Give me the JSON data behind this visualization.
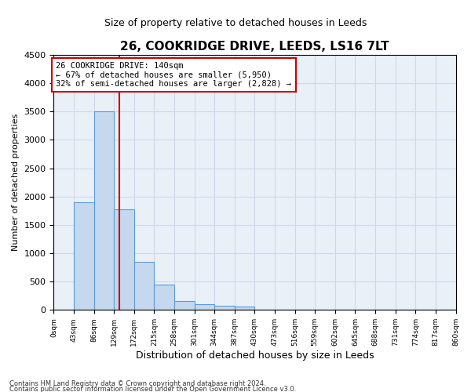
{
  "title": "26, COOKRIDGE DRIVE, LEEDS, LS16 7LT",
  "subtitle": "Size of property relative to detached houses in Leeds",
  "xlabel": "Distribution of detached houses by size in Leeds",
  "ylabel": "Number of detached properties",
  "annotation_line1": "26 COOKRIDGE DRIVE: 140sqm",
  "annotation_line2": "← 67% of detached houses are smaller (5,950)",
  "annotation_line3": "32% of semi-detached houses are larger (2,828) →",
  "footer_line1": "Contains HM Land Registry data © Crown copyright and database right 2024.",
  "footer_line2": "Contains public sector information licensed under the Open Government Licence v3.0.",
  "bar_color": "#c5d8ed",
  "bar_edge_color": "#5b9bd5",
  "marker_line_color": "#cc0000",
  "annotation_box_edge_color": "#cc0000",
  "grid_color": "#d0d8e8",
  "background_color": "#eaf0f8",
  "ylim": [
    0,
    4500
  ],
  "yticks": [
    0,
    500,
    1000,
    1500,
    2000,
    2500,
    3000,
    3500,
    4000,
    4500
  ],
  "property_size_sqm": 140,
  "bin_edges": [
    0,
    43,
    86,
    129,
    172,
    215,
    258,
    301,
    344,
    387,
    430,
    473,
    516,
    559,
    602,
    645,
    688,
    731,
    774,
    817,
    860
  ],
  "counts": [
    5,
    1900,
    3500,
    1775,
    850,
    450,
    155,
    95,
    70,
    60,
    0,
    0,
    0,
    0,
    0,
    0,
    0,
    0,
    0,
    0
  ],
  "tick_labels": [
    "0sqm",
    "43sqm",
    "86sqm",
    "129sqm",
    "172sqm",
    "215sqm",
    "258sqm",
    "301sqm",
    "344sqm",
    "387sqm",
    "430sqm",
    "473sqm",
    "516sqm",
    "559sqm",
    "602sqm",
    "645sqm",
    "688sqm",
    "731sqm",
    "774sqm",
    "817sqm",
    "860sqm"
  ]
}
